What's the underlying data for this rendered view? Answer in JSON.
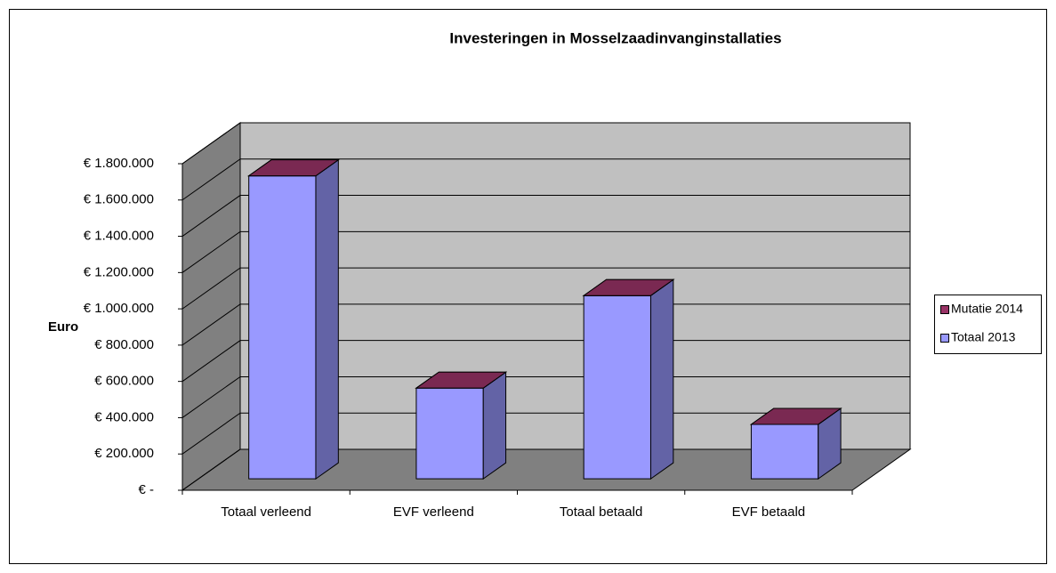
{
  "chart_data": {
    "type": "bar3d_stacked",
    "title": "Investeringen in Mosselzaadinvanginstallaties",
    "y_label": "Euro",
    "categories": [
      "Totaal verleend",
      "EVF verleend",
      "Totaal betaald",
      "EVF betaald"
    ],
    "series": [
      {
        "name": "Totaal 2013",
        "color": "#9999ff",
        "values": [
          1670000,
          500000,
          1010000,
          300000
        ]
      },
      {
        "name": "Mutatie 2014",
        "color": "#993366",
        "values": [
          0,
          0,
          0,
          0
        ]
      }
    ],
    "ylim": [
      0,
      1800000
    ],
    "yticks": [
      {
        "value": 0,
        "label": "€ -"
      },
      {
        "value": 200000,
        "label": "€ 200.000"
      },
      {
        "value": 400000,
        "label": "€ 400.000"
      },
      {
        "value": 600000,
        "label": "€ 600.000"
      },
      {
        "value": 800000,
        "label": "€ 800.000"
      },
      {
        "value": 1000000,
        "label": "€ 1.000.000"
      },
      {
        "value": 1200000,
        "label": "€ 1.200.000"
      },
      {
        "value": 1400000,
        "label": "€ 1.400.000"
      },
      {
        "value": 1600000,
        "label": "€ 1.600.000"
      },
      {
        "value": 1800000,
        "label": "€ 1.800.000"
      }
    ],
    "grid": true,
    "legend": "right"
  }
}
